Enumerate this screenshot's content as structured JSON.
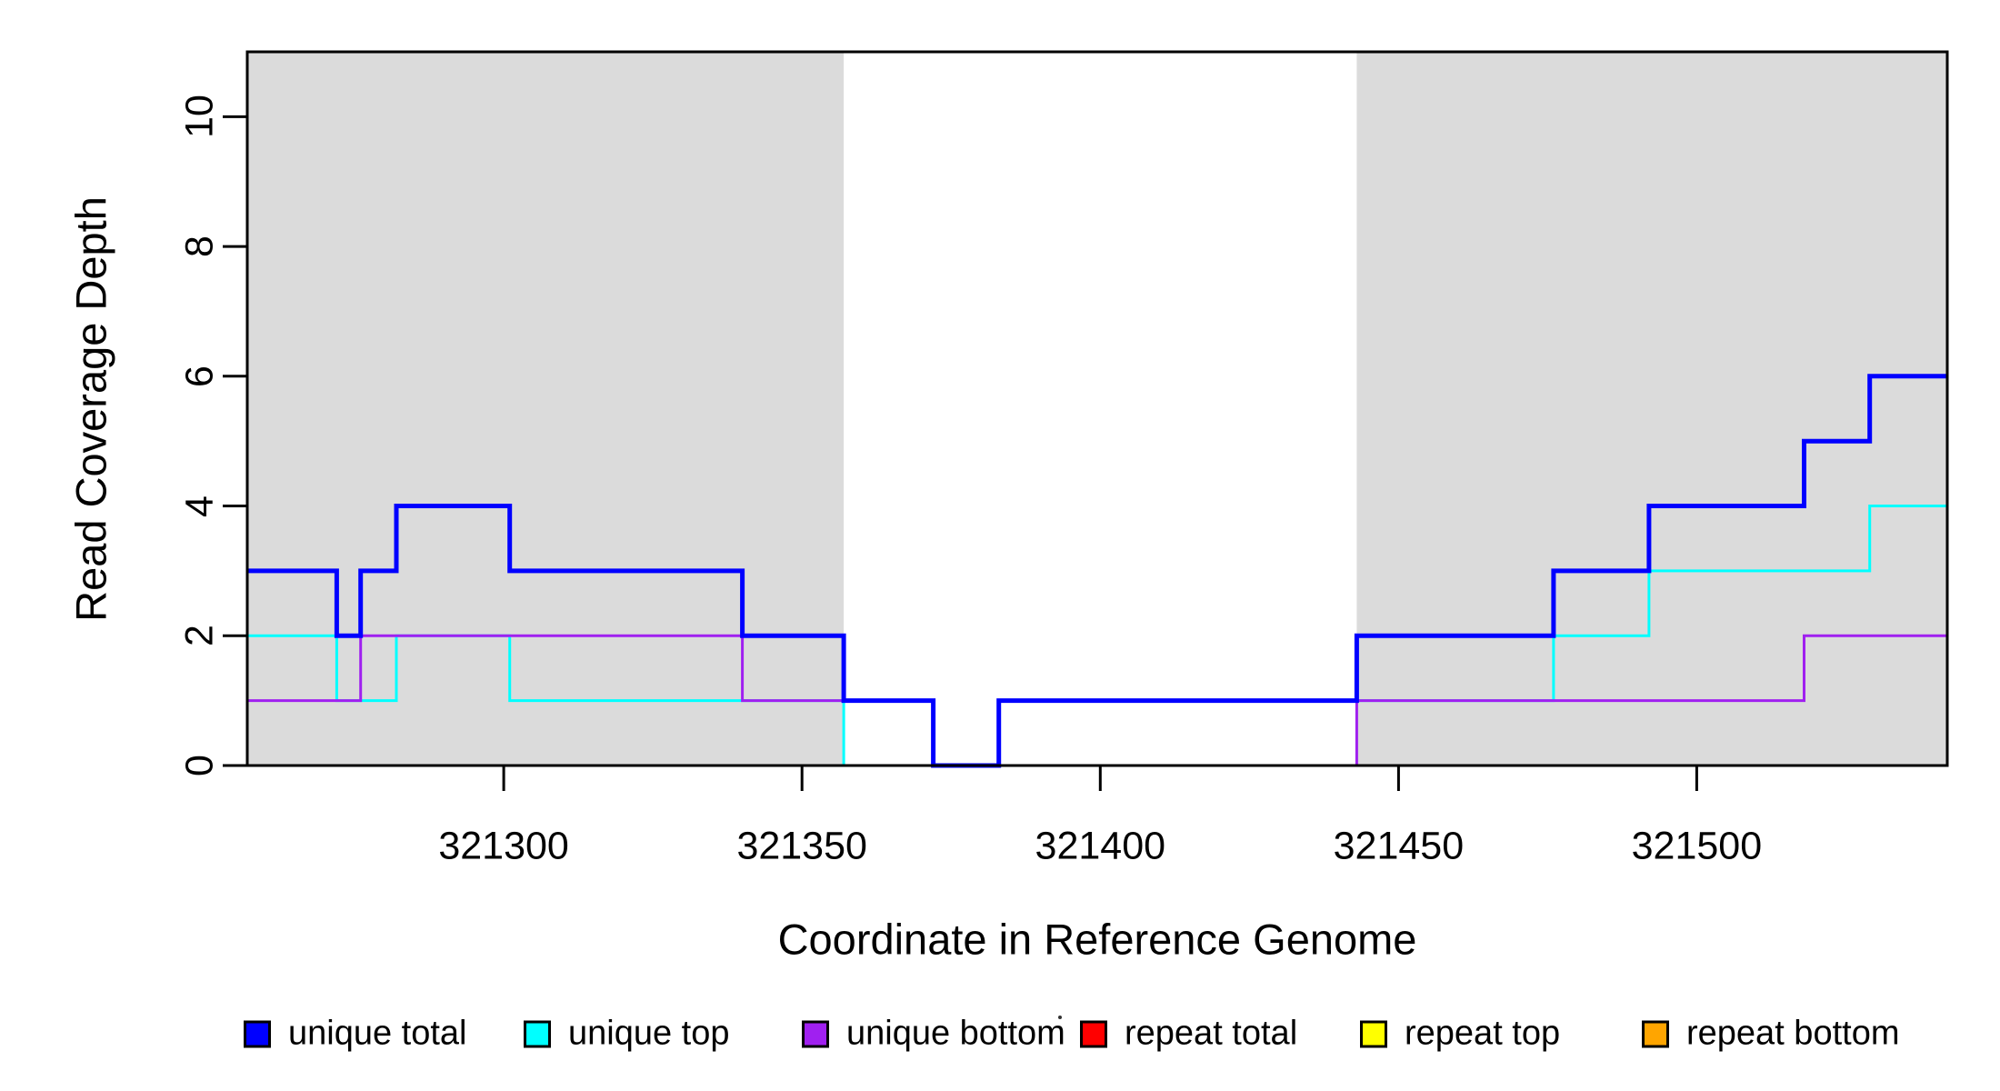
{
  "figure": {
    "background": "#ffffff",
    "plot_background_shade": "#DBDBDB",
    "box_color": "#000000"
  },
  "chart_data": {
    "type": "line",
    "subtype": "step",
    "title": "",
    "xlabel": "Coordinate in Reference Genome",
    "ylabel": "Read Coverage Depth",
    "xlim": [
      321257,
      321542
    ],
    "ylim": [
      0,
      11
    ],
    "x_ticks": [
      "321300",
      "321350",
      "321400",
      "321450",
      "321500"
    ],
    "x_tick_values": [
      321300,
      321350,
      321400,
      321450,
      321500
    ],
    "y_ticks": [
      "0",
      "2",
      "4",
      "6",
      "8",
      "10"
    ],
    "y_tick_values": [
      0,
      2,
      4,
      6,
      8,
      10
    ],
    "grid": false,
    "legend_position": "bottom",
    "shaded_regions": {
      "color": "#DBDBDB",
      "regions": [
        [
          321257,
          321357
        ],
        [
          321443,
          321542
        ]
      ]
    },
    "series": [
      {
        "name": "unique total",
        "color": "#0000FF",
        "line_width": 5,
        "steps": [
          [
            321257,
            3
          ],
          [
            321272,
            2
          ],
          [
            321276,
            3
          ],
          [
            321282,
            4
          ],
          [
            321301,
            3
          ],
          [
            321340,
            2
          ],
          [
            321357,
            1
          ],
          [
            321372,
            0
          ],
          [
            321383,
            1
          ],
          [
            321443,
            2
          ],
          [
            321476,
            3
          ],
          [
            321492,
            4
          ],
          [
            321518,
            5
          ],
          [
            321529,
            6
          ]
        ]
      },
      {
        "name": "unique top",
        "color": "#00FFFF",
        "line_width": 3,
        "steps": [
          [
            321257,
            2
          ],
          [
            321272,
            1
          ],
          [
            321282,
            2
          ],
          [
            321301,
            1
          ],
          [
            321357,
            0
          ],
          [
            321383,
            1
          ],
          [
            321476,
            2
          ],
          [
            321492,
            3
          ],
          [
            321529,
            4
          ]
        ]
      },
      {
        "name": "unique bottom",
        "color": "#A020F0",
        "line_width": 3,
        "steps": [
          [
            321257,
            1
          ],
          [
            321276,
            2
          ],
          [
            321340,
            1
          ],
          [
            321372,
            0
          ],
          [
            321443,
            1
          ],
          [
            321518,
            2
          ]
        ]
      },
      {
        "name": "repeat total",
        "color": "#FF0000",
        "line_width": 3,
        "steps": [
          [
            321257,
            0
          ]
        ]
      },
      {
        "name": "repeat top",
        "color": "#FFFF00",
        "line_width": 3,
        "steps": [
          [
            321257,
            0
          ]
        ]
      },
      {
        "name": "repeat bottom",
        "color": "#FFA500",
        "line_width": 3,
        "steps": [
          [
            321257,
            0
          ]
        ]
      }
    ],
    "draw_order": [
      3,
      4,
      5,
      1,
      2,
      0
    ]
  },
  "legend": {
    "items": [
      {
        "label": "unique total",
        "color": "#0000FF"
      },
      {
        "label": "unique top",
        "color": "#00FFFF"
      },
      {
        "label": "unique bottom",
        "color": "#A020F0"
      },
      {
        "label": "repeat total",
        "color": "#FF0000"
      },
      {
        "label": "repeat top",
        "color": "#FFFF00"
      },
      {
        "label": "repeat bottom",
        "color": "#FFA500"
      }
    ]
  }
}
